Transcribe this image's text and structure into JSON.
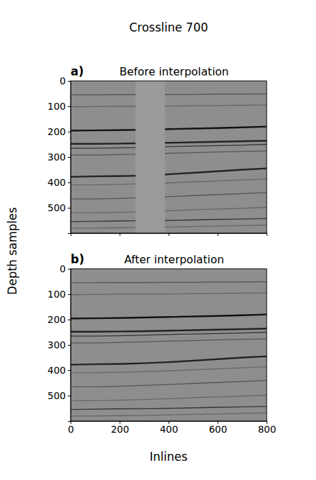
{
  "suptitle": "Crossline 700",
  "y_label": "Depth samples",
  "x_label": "Inlines",
  "chart_data": [
    {
      "type": "seismic",
      "label": "a)",
      "title": "Before interpolation",
      "xlim": [
        0,
        800
      ],
      "ylim": [
        600,
        0
      ],
      "xticks": [
        0,
        200,
        400,
        600,
        800
      ],
      "yticks": [
        0,
        100,
        200,
        300,
        400,
        500
      ],
      "tick_labels": "y",
      "missing_inlines": [
        265,
        385
      ],
      "x": [
        0,
        100,
        200,
        265,
        325,
        385,
        400,
        500,
        600,
        700,
        800
      ],
      "series": [
        {
          "color": "#555555",
          "values": [
            55,
            55,
            54,
            54,
            null,
            54,
            53,
            53,
            52,
            52,
            51
          ]
        },
        {
          "color": "#666666",
          "values": [
            102,
            101,
            100,
            100,
            null,
            100,
            99,
            98,
            97,
            96,
            95
          ]
        },
        {
          "color": "#111111",
          "values": [
            196,
            195,
            194,
            193,
            null,
            191,
            190,
            188,
            186,
            183,
            180
          ]
        },
        {
          "color": "#222222",
          "values": [
            248,
            248,
            247,
            246,
            null,
            244,
            244,
            242,
            240,
            238,
            236
          ]
        },
        {
          "color": "#333333",
          "values": [
            265,
            265,
            264,
            263,
            null,
            260,
            259,
            257,
            255,
            253,
            250
          ]
        },
        {
          "color": "#555555",
          "values": [
            292,
            292,
            290,
            289,
            null,
            286,
            285,
            283,
            280,
            278,
            276
          ]
        },
        {
          "color": "#222222",
          "values": [
            378,
            376,
            375,
            374,
            null,
            369,
            368,
            362,
            356,
            350,
            345
          ]
        },
        {
          "color": "#666666",
          "values": [
            410,
            410,
            408,
            406,
            null,
            403,
            402,
            398,
            394,
            390,
            386
          ]
        },
        {
          "color": "#555555",
          "values": [
            465,
            465,
            463,
            461,
            null,
            457,
            456,
            452,
            448,
            444,
            440
          ]
        },
        {
          "color": "#666666",
          "values": [
            520,
            520,
            518,
            516,
            null,
            513,
            512,
            508,
            505,
            502,
            498
          ]
        },
        {
          "color": "#333333",
          "values": [
            555,
            553,
            552,
            551,
            null,
            550,
            550,
            548,
            546,
            544,
            542
          ]
        },
        {
          "color": "#666666",
          "values": [
            580,
            580,
            579,
            578,
            null,
            576,
            576,
            574,
            572,
            570,
            568
          ]
        }
      ]
    },
    {
      "type": "seismic",
      "label": "b)",
      "title": "After interpolation",
      "xlim": [
        0,
        800
      ],
      "ylim": [
        600,
        0
      ],
      "xticks": [
        0,
        200,
        400,
        600,
        800
      ],
      "yticks": [
        0,
        100,
        200,
        300,
        400,
        500
      ],
      "x": [
        0,
        100,
        200,
        300,
        400,
        500,
        600,
        700,
        800
      ],
      "series": [
        {
          "color": "#555555",
          "values": [
            55,
            55,
            54,
            54,
            53,
            53,
            52,
            52,
            51
          ]
        },
        {
          "color": "#666666",
          "values": [
            102,
            101,
            100,
            100,
            99,
            98,
            97,
            96,
            95
          ]
        },
        {
          "color": "#111111",
          "values": [
            196,
            195,
            194,
            192,
            190,
            188,
            186,
            183,
            180
          ]
        },
        {
          "color": "#222222",
          "values": [
            248,
            248,
            247,
            246,
            244,
            242,
            240,
            238,
            236
          ]
        },
        {
          "color": "#333333",
          "values": [
            265,
            265,
            264,
            262,
            259,
            257,
            255,
            253,
            250
          ]
        },
        {
          "color": "#555555",
          "values": [
            292,
            292,
            290,
            288,
            285,
            283,
            280,
            278,
            276
          ]
        },
        {
          "color": "#222222",
          "values": [
            378,
            376,
            375,
            372,
            368,
            362,
            356,
            350,
            345
          ]
        },
        {
          "color": "#666666",
          "values": [
            410,
            410,
            408,
            405,
            402,
            398,
            394,
            390,
            386
          ]
        },
        {
          "color": "#555555",
          "values": [
            465,
            465,
            463,
            460,
            456,
            452,
            448,
            444,
            440
          ]
        },
        {
          "color": "#666666",
          "values": [
            520,
            520,
            518,
            515,
            512,
            508,
            505,
            502,
            498
          ]
        },
        {
          "color": "#333333",
          "values": [
            555,
            553,
            552,
            551,
            550,
            548,
            546,
            544,
            542
          ]
        },
        {
          "color": "#666666",
          "values": [
            580,
            580,
            579,
            578,
            576,
            574,
            572,
            570,
            568
          ]
        }
      ]
    }
  ]
}
